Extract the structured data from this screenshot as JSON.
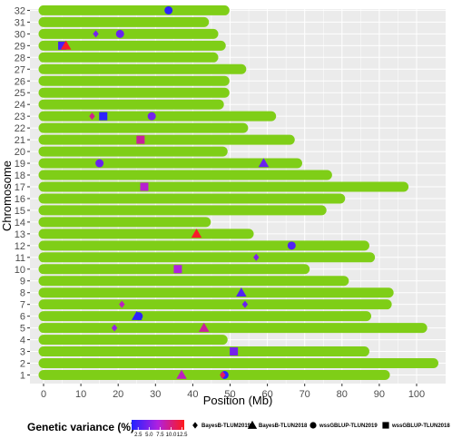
{
  "chart_data": {
    "type": "scatter",
    "xlabel": "Position (Mb)",
    "ylabel": "Chromosome",
    "xlim": [
      -3,
      107
    ],
    "x_ticks": [
      0,
      10,
      20,
      30,
      40,
      50,
      60,
      70,
      80,
      90,
      100
    ],
    "chromosomes": [
      {
        "chr": 1,
        "length": 91.5
      },
      {
        "chr": 2,
        "length": 104.5
      },
      {
        "chr": 3,
        "length": 86
      },
      {
        "chr": 4,
        "length": 48
      },
      {
        "chr": 5,
        "length": 101.5
      },
      {
        "chr": 6,
        "length": 86.5
      },
      {
        "chr": 7,
        "length": 92
      },
      {
        "chr": 8,
        "length": 92.5
      },
      {
        "chr": 9,
        "length": 80.5
      },
      {
        "chr": 10,
        "length": 70
      },
      {
        "chr": 11,
        "length": 87.5
      },
      {
        "chr": 12,
        "length": 86
      },
      {
        "chr": 13,
        "length": 55
      },
      {
        "chr": 14,
        "length": 43.5
      },
      {
        "chr": 15,
        "length": 74.5
      },
      {
        "chr": 16,
        "length": 79.5
      },
      {
        "chr": 17,
        "length": 96.5
      },
      {
        "chr": 18,
        "length": 76
      },
      {
        "chr": 19,
        "length": 68
      },
      {
        "chr": 20,
        "length": 48
      },
      {
        "chr": 21,
        "length": 66
      },
      {
        "chr": 22,
        "length": 53.5
      },
      {
        "chr": 23,
        "length": 61
      },
      {
        "chr": 24,
        "length": 47
      },
      {
        "chr": 25,
        "length": 48.5
      },
      {
        "chr": 26,
        "length": 48.5
      },
      {
        "chr": 27,
        "length": 53
      },
      {
        "chr": 28,
        "length": 45.5
      },
      {
        "chr": 29,
        "length": 47.5
      },
      {
        "chr": 30,
        "length": 45.5
      },
      {
        "chr": 31,
        "length": 43
      },
      {
        "chr": 32,
        "length": 48.5
      }
    ],
    "markers": [
      {
        "chr": 1,
        "pos": 37,
        "method": "BayesB-TLUN2018",
        "gv": 8.0
      },
      {
        "chr": 1,
        "pos": 48.5,
        "method": "wssGBLUP-TLUN2019",
        "gv": 1.5
      },
      {
        "chr": 1,
        "pos": 48,
        "method": "BayesB-TLUM2019",
        "gv": 11.0
      },
      {
        "chr": 3,
        "pos": 51,
        "method": "wssGBLUP-TLUN2018",
        "gv": 4.5
      },
      {
        "chr": 5,
        "pos": 19,
        "method": "BayesB-TLUM2019",
        "gv": 6.0
      },
      {
        "chr": 5,
        "pos": 43,
        "method": "BayesB-TLUN2018",
        "gv": 9.0
      },
      {
        "chr": 6,
        "pos": 25,
        "method": "BayesB-TLUN2018",
        "gv": 1.5
      },
      {
        "chr": 6,
        "pos": 25.5,
        "method": "wssGBLUP-TLUN2019",
        "gv": 1.5
      },
      {
        "chr": 7,
        "pos": 21,
        "method": "BayesB-TLUM2019",
        "gv": 8.0
      },
      {
        "chr": 7,
        "pos": 54,
        "method": "BayesB-TLUM2019",
        "gv": 4.0
      },
      {
        "chr": 8,
        "pos": 53,
        "method": "BayesB-TLUN2018",
        "gv": 3.0
      },
      {
        "chr": 10,
        "pos": 36,
        "method": "wssGBLUP-TLUN2018",
        "gv": 7.0
      },
      {
        "chr": 11,
        "pos": 57,
        "method": "BayesB-TLUM2019",
        "gv": 5.0
      },
      {
        "chr": 12,
        "pos": 66.5,
        "method": "wssGBLUP-TLUN2019",
        "gv": 3.0
      },
      {
        "chr": 13,
        "pos": 41,
        "method": "BayesB-TLUN2018",
        "gv": 12.5
      },
      {
        "chr": 17,
        "pos": 27,
        "method": "wssGBLUP-TLUN2018",
        "gv": 7.5
      },
      {
        "chr": 19,
        "pos": 15,
        "method": "wssGBLUP-TLUN2019",
        "gv": 4.0
      },
      {
        "chr": 19,
        "pos": 59,
        "method": "BayesB-TLUN2018",
        "gv": 4.0
      },
      {
        "chr": 21,
        "pos": 26,
        "method": "wssGBLUP-TLUN2018",
        "gv": 9.0
      },
      {
        "chr": 23,
        "pos": 13,
        "method": "BayesB-TLUM2019",
        "gv": 9.5
      },
      {
        "chr": 23,
        "pos": 16,
        "method": "wssGBLUP-TLUN2018",
        "gv": 1.5
      },
      {
        "chr": 23,
        "pos": 29,
        "method": "wssGBLUP-TLUN2019",
        "gv": 4.5
      },
      {
        "chr": 29,
        "pos": 5,
        "method": "wssGBLUP-TLUN2018",
        "gv": 2.5
      },
      {
        "chr": 29,
        "pos": 6,
        "method": "BayesB-TLUN2018",
        "gv": 12.5
      },
      {
        "chr": 30,
        "pos": 14,
        "method": "BayesB-TLUM2019",
        "gv": 4.5
      },
      {
        "chr": 30,
        "pos": 20.5,
        "method": "wssGBLUP-TLUN2019",
        "gv": 4.0
      },
      {
        "chr": 32,
        "pos": 33.5,
        "method": "wssGBLUP-TLUN2019",
        "gv": 1.5
      }
    ],
    "legend": {
      "color_title": "Genetic variance (%)",
      "color_ticks": [
        2.5,
        5.0,
        7.5,
        10.0,
        12.5
      ],
      "color_tick_labels": [
        "2.5",
        "5.0",
        "7.5",
        "10.0",
        "12.5"
      ],
      "color_range": [
        1.0,
        13.0
      ],
      "shape_items": [
        {
          "label": "BayesB-TLUM2019",
          "shape": "diamond"
        },
        {
          "label": "BayesB-TLUN2018",
          "shape": "triangle"
        },
        {
          "label": "wssGBLUP-TLUN2019",
          "shape": "circle"
        },
        {
          "label": "wssGBLUP-TLUN2018",
          "shape": "square"
        }
      ],
      "placement": "bottom"
    },
    "colors": {
      "bar": "#7fce17",
      "panel_bg": "#ebebeb",
      "grid": "#ffffff",
      "low": "#2222ff",
      "mid": "#b020e0",
      "high": "#ff1a1a"
    },
    "grid": true
  }
}
